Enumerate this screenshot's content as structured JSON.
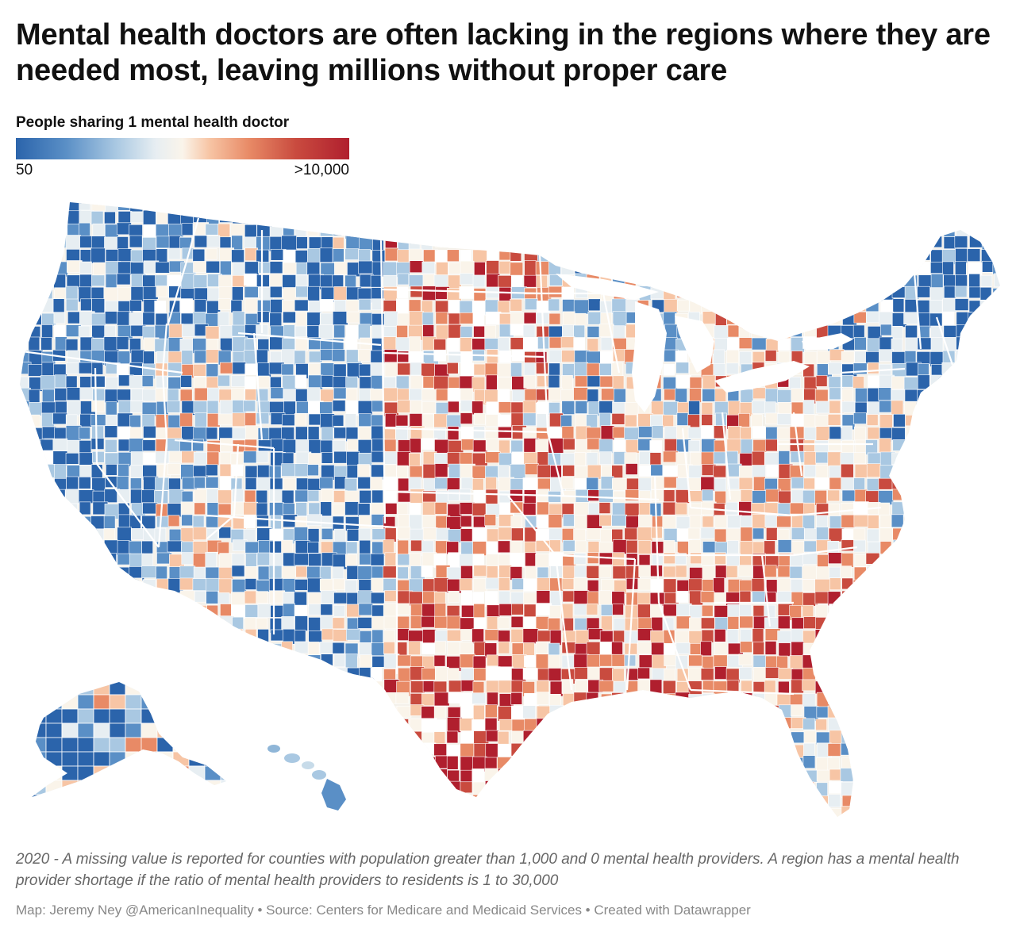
{
  "headline": "Mental health doctors are often lacking in the regions where they are needed most, leaving millions without proper care",
  "legend": {
    "title": "People sharing 1 mental health doctor",
    "min_label": "50",
    "max_label": ">10,000",
    "color_low": "#2b64ab",
    "color_mid": "#faf4ea",
    "color_high": "#b01f2e"
  },
  "map": {
    "type": "choropleth",
    "geography": "U.S. counties",
    "scale": [
      "#2b64ab",
      "#5a8fc6",
      "#a9c8e2",
      "#e7eef2",
      "#faf4ea",
      "#f7c5a5",
      "#e88a66",
      "#c94b3f",
      "#b01f2e"
    ],
    "missing_color": "#ffffff"
  },
  "notes": "2020 - A missing value is reported for counties with population greater than 1,000 and 0 mental health providers. A region has a mental health provider shortage if the ratio of mental health providers to residents is 1 to 30,000",
  "credit": "Map: Jeremy Ney @AmericanInequality • Source: Centers for Medicare and Medicaid Services • Created with Datawrapper"
}
